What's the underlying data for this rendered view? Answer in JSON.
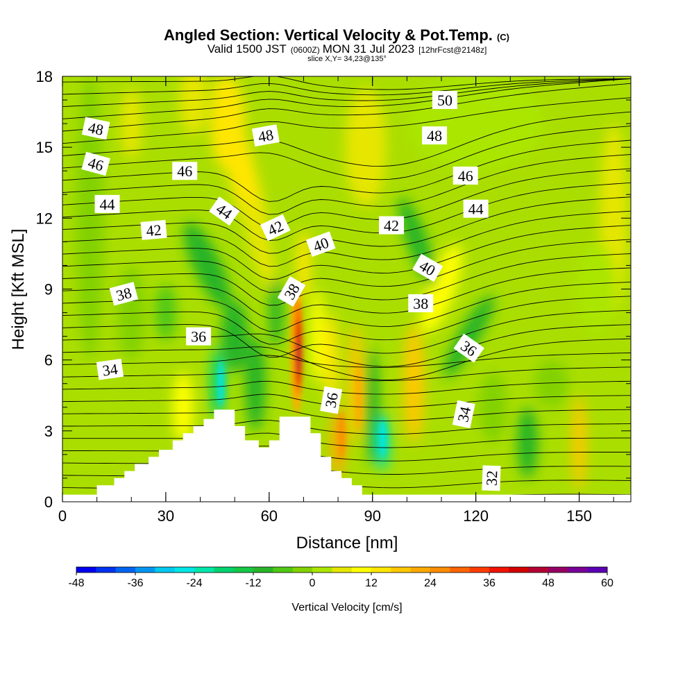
{
  "chart_data": {
    "type": "heatmap",
    "title": "Angled Section: Vertical Velocity & Pot.Temp.",
    "title_suffix": "(C)",
    "subtitle_a": "Valid 1500 JST",
    "subtitle_b": "(0600Z)",
    "subtitle_c": "MON 31 Jul 2023",
    "subtitle_d": "[12hrFcst@2148z]",
    "subtitle_e": "slice X,Y= 34,23@135°",
    "xlabel": "Distance [nm]",
    "ylabel": "Height [Kft MSL]",
    "xlim": [
      0,
      165
    ],
    "ylim": [
      0,
      18
    ],
    "xticks": [
      0,
      30,
      60,
      90,
      120,
      150
    ],
    "yticks": [
      0,
      3,
      6,
      9,
      12,
      15,
      18
    ],
    "colorbar": {
      "label": "Vertical Velocity [cm/s]",
      "min": -48,
      "max": 60,
      "step": 4,
      "tick_labels": [
        "-48",
        "-36",
        "-24",
        "-12",
        "0",
        "12",
        "24",
        "36",
        "48",
        "60"
      ],
      "colors": [
        "#0000f0",
        "#0032f0",
        "#0064f0",
        "#0096f0",
        "#00c8f0",
        "#00e6e6",
        "#00e6aa",
        "#00d26e",
        "#14c846",
        "#28b428",
        "#50c814",
        "#82d200",
        "#aae600",
        "#e6e600",
        "#ffff00",
        "#ffe600",
        "#ffc800",
        "#ffaa00",
        "#ff8c00",
        "#ff6400",
        "#ff3c00",
        "#f01400",
        "#d20000",
        "#b40032",
        "#960064",
        "#780096",
        "#5a00b4"
      ]
    },
    "terrain": [
      [
        0,
        0.3
      ],
      [
        10,
        0.3
      ],
      [
        10,
        0.7
      ],
      [
        15,
        0.7
      ],
      [
        15,
        1.0
      ],
      [
        18,
        1.0
      ],
      [
        18,
        1.3
      ],
      [
        21,
        1.3
      ],
      [
        21,
        1.6
      ],
      [
        25,
        1.6
      ],
      [
        25,
        1.9
      ],
      [
        28,
        1.9
      ],
      [
        28,
        2.2
      ],
      [
        32,
        2.2
      ],
      [
        32,
        2.6
      ],
      [
        35,
        2.6
      ],
      [
        35,
        2.9
      ],
      [
        38,
        2.9
      ],
      [
        38,
        3.2
      ],
      [
        41,
        3.2
      ],
      [
        41,
        3.5
      ],
      [
        44,
        3.5
      ],
      [
        44,
        3.9
      ],
      [
        50,
        3.9
      ],
      [
        50,
        3.2
      ],
      [
        53,
        3.2
      ],
      [
        53,
        2.6
      ],
      [
        57,
        2.6
      ],
      [
        57,
        2.3
      ],
      [
        60,
        2.3
      ],
      [
        60,
        2.6
      ],
      [
        63,
        2.6
      ],
      [
        63,
        3.6
      ],
      [
        72,
        3.6
      ],
      [
        72,
        2.9
      ],
      [
        75,
        2.9
      ],
      [
        75,
        1.9
      ],
      [
        78,
        1.9
      ],
      [
        78,
        1.3
      ],
      [
        81,
        1.3
      ],
      [
        81,
        1.0
      ],
      [
        84,
        1.0
      ],
      [
        84,
        0.7
      ],
      [
        87,
        0.7
      ],
      [
        87,
        0.3
      ],
      [
        165,
        0.3
      ]
    ],
    "theta_contours": [
      {
        "value": 32,
        "label": "32",
        "labels": [
          [
            124.5,
            1.0,
            -88
          ]
        ]
      },
      {
        "value": 34,
        "label": "34",
        "labels": [
          [
            13.8,
            5.6,
            -8
          ],
          [
            116.5,
            3.7,
            -78
          ]
        ]
      },
      {
        "value": 36,
        "label": "36",
        "labels": [
          [
            39.5,
            7.0,
            0
          ],
          [
            78,
            4.3,
            -80
          ],
          [
            118,
            6.5,
            35
          ]
        ]
      },
      {
        "value": 38,
        "label": "38",
        "labels": [
          [
            17.8,
            8.8,
            -15
          ],
          [
            66.5,
            8.9,
            -60
          ],
          [
            104,
            8.4,
            0
          ]
        ]
      },
      {
        "value": 40,
        "label": "40",
        "labels": [
          [
            75,
            10.9,
            -20
          ],
          [
            106,
            9.9,
            30
          ]
        ]
      },
      {
        "value": 42,
        "label": "42",
        "labels": [
          [
            26.5,
            11.5,
            -5
          ],
          [
            61.8,
            11.6,
            -25
          ],
          [
            95.5,
            11.7,
            0
          ]
        ]
      },
      {
        "value": 44,
        "label": "44",
        "labels": [
          [
            13,
            12.6,
            0
          ],
          [
            47,
            12.3,
            35
          ],
          [
            120,
            12.4,
            0
          ]
        ]
      },
      {
        "value": 46,
        "label": "46",
        "labels": [
          [
            9.7,
            14.3,
            15
          ],
          [
            35.5,
            14.0,
            0
          ],
          [
            117,
            13.8,
            0
          ]
        ]
      },
      {
        "value": 48,
        "label": "48",
        "labels": [
          [
            9.7,
            15.8,
            12
          ],
          [
            59,
            15.5,
            -10
          ],
          [
            108,
            15.5,
            0
          ]
        ]
      },
      {
        "value": 50,
        "label": "50",
        "labels": [
          [
            111,
            17.0,
            0
          ]
        ]
      }
    ]
  }
}
